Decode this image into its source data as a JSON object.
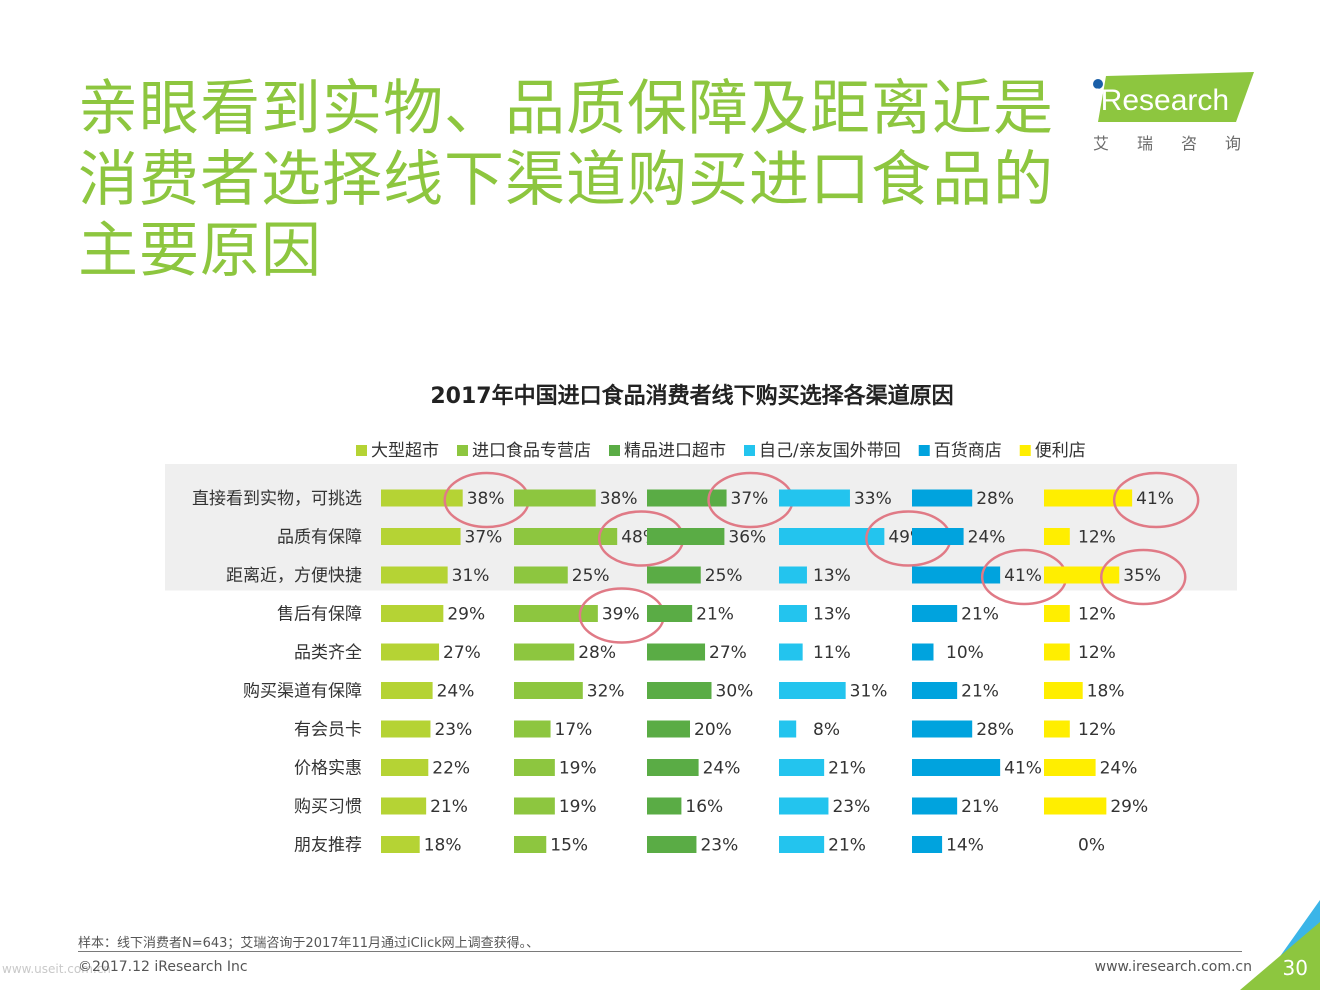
{
  "title": "亲眼看到实物、品质保障及距离近是消费者选择线下渠道购买进口食品的主要原因",
  "logo": {
    "brand": "iResearch",
    "subtitle": "艾瑞咨询"
  },
  "footnote": "样本：线下消费者N=643；艾瑞咨询于2017年11月通过iClick网上调查获得。、",
  "copyright": "©2017.12 iResearch Inc",
  "website": "www.iresearch.com.cn",
  "page_number": "30",
  "watermark": "www.useit.com.cn",
  "colors": {
    "title": "#8dc63f",
    "highlight_band": "#efefef",
    "circle": "#e07a86"
  },
  "chart_data": {
    "type": "bar",
    "title": "2017年中国进口食品消费者线下购买选择各渠道原因",
    "categories": [
      "直接看到实物，可挑选",
      "品质有保障",
      "距离近，方便快捷",
      "售后有保障",
      "品类齐全",
      "购买渠道有保障",
      "有会员卡",
      "价格实惠",
      "购买习惯",
      "朋友推荐"
    ],
    "series": [
      {
        "name": "大型超市",
        "color": "#b5d334",
        "values": [
          38,
          37,
          31,
          29,
          27,
          24,
          23,
          22,
          21,
          18
        ],
        "circled": [
          0
        ]
      },
      {
        "name": "进口食品专营店",
        "color": "#8dc63f",
        "values": [
          38,
          48,
          25,
          39,
          28,
          32,
          17,
          19,
          19,
          15
        ],
        "circled": [
          1,
          3
        ]
      },
      {
        "name": "精品进口超市",
        "color": "#5aac45",
        "values": [
          37,
          36,
          25,
          21,
          27,
          30,
          20,
          24,
          16,
          23
        ],
        "circled": [
          0
        ]
      },
      {
        "name": "自己/亲友国外带回",
        "color": "#23c4ee",
        "values": [
          33,
          49,
          13,
          13,
          11,
          31,
          8,
          21,
          23,
          21
        ],
        "circled": [
          1
        ]
      },
      {
        "name": "百货商店",
        "color": "#00a3de",
        "values": [
          28,
          24,
          41,
          21,
          10,
          21,
          28,
          41,
          21,
          14
        ],
        "circled": [
          2
        ]
      },
      {
        "name": "便利店",
        "color": "#ffee00",
        "values": [
          41,
          12,
          35,
          12,
          12,
          18,
          12,
          24,
          29,
          0
        ],
        "circled": [
          0,
          2
        ]
      }
    ],
    "value_suffix": "%",
    "highlight_rows": [
      0,
      1,
      2
    ],
    "legend_position": "top",
    "grid": false
  }
}
